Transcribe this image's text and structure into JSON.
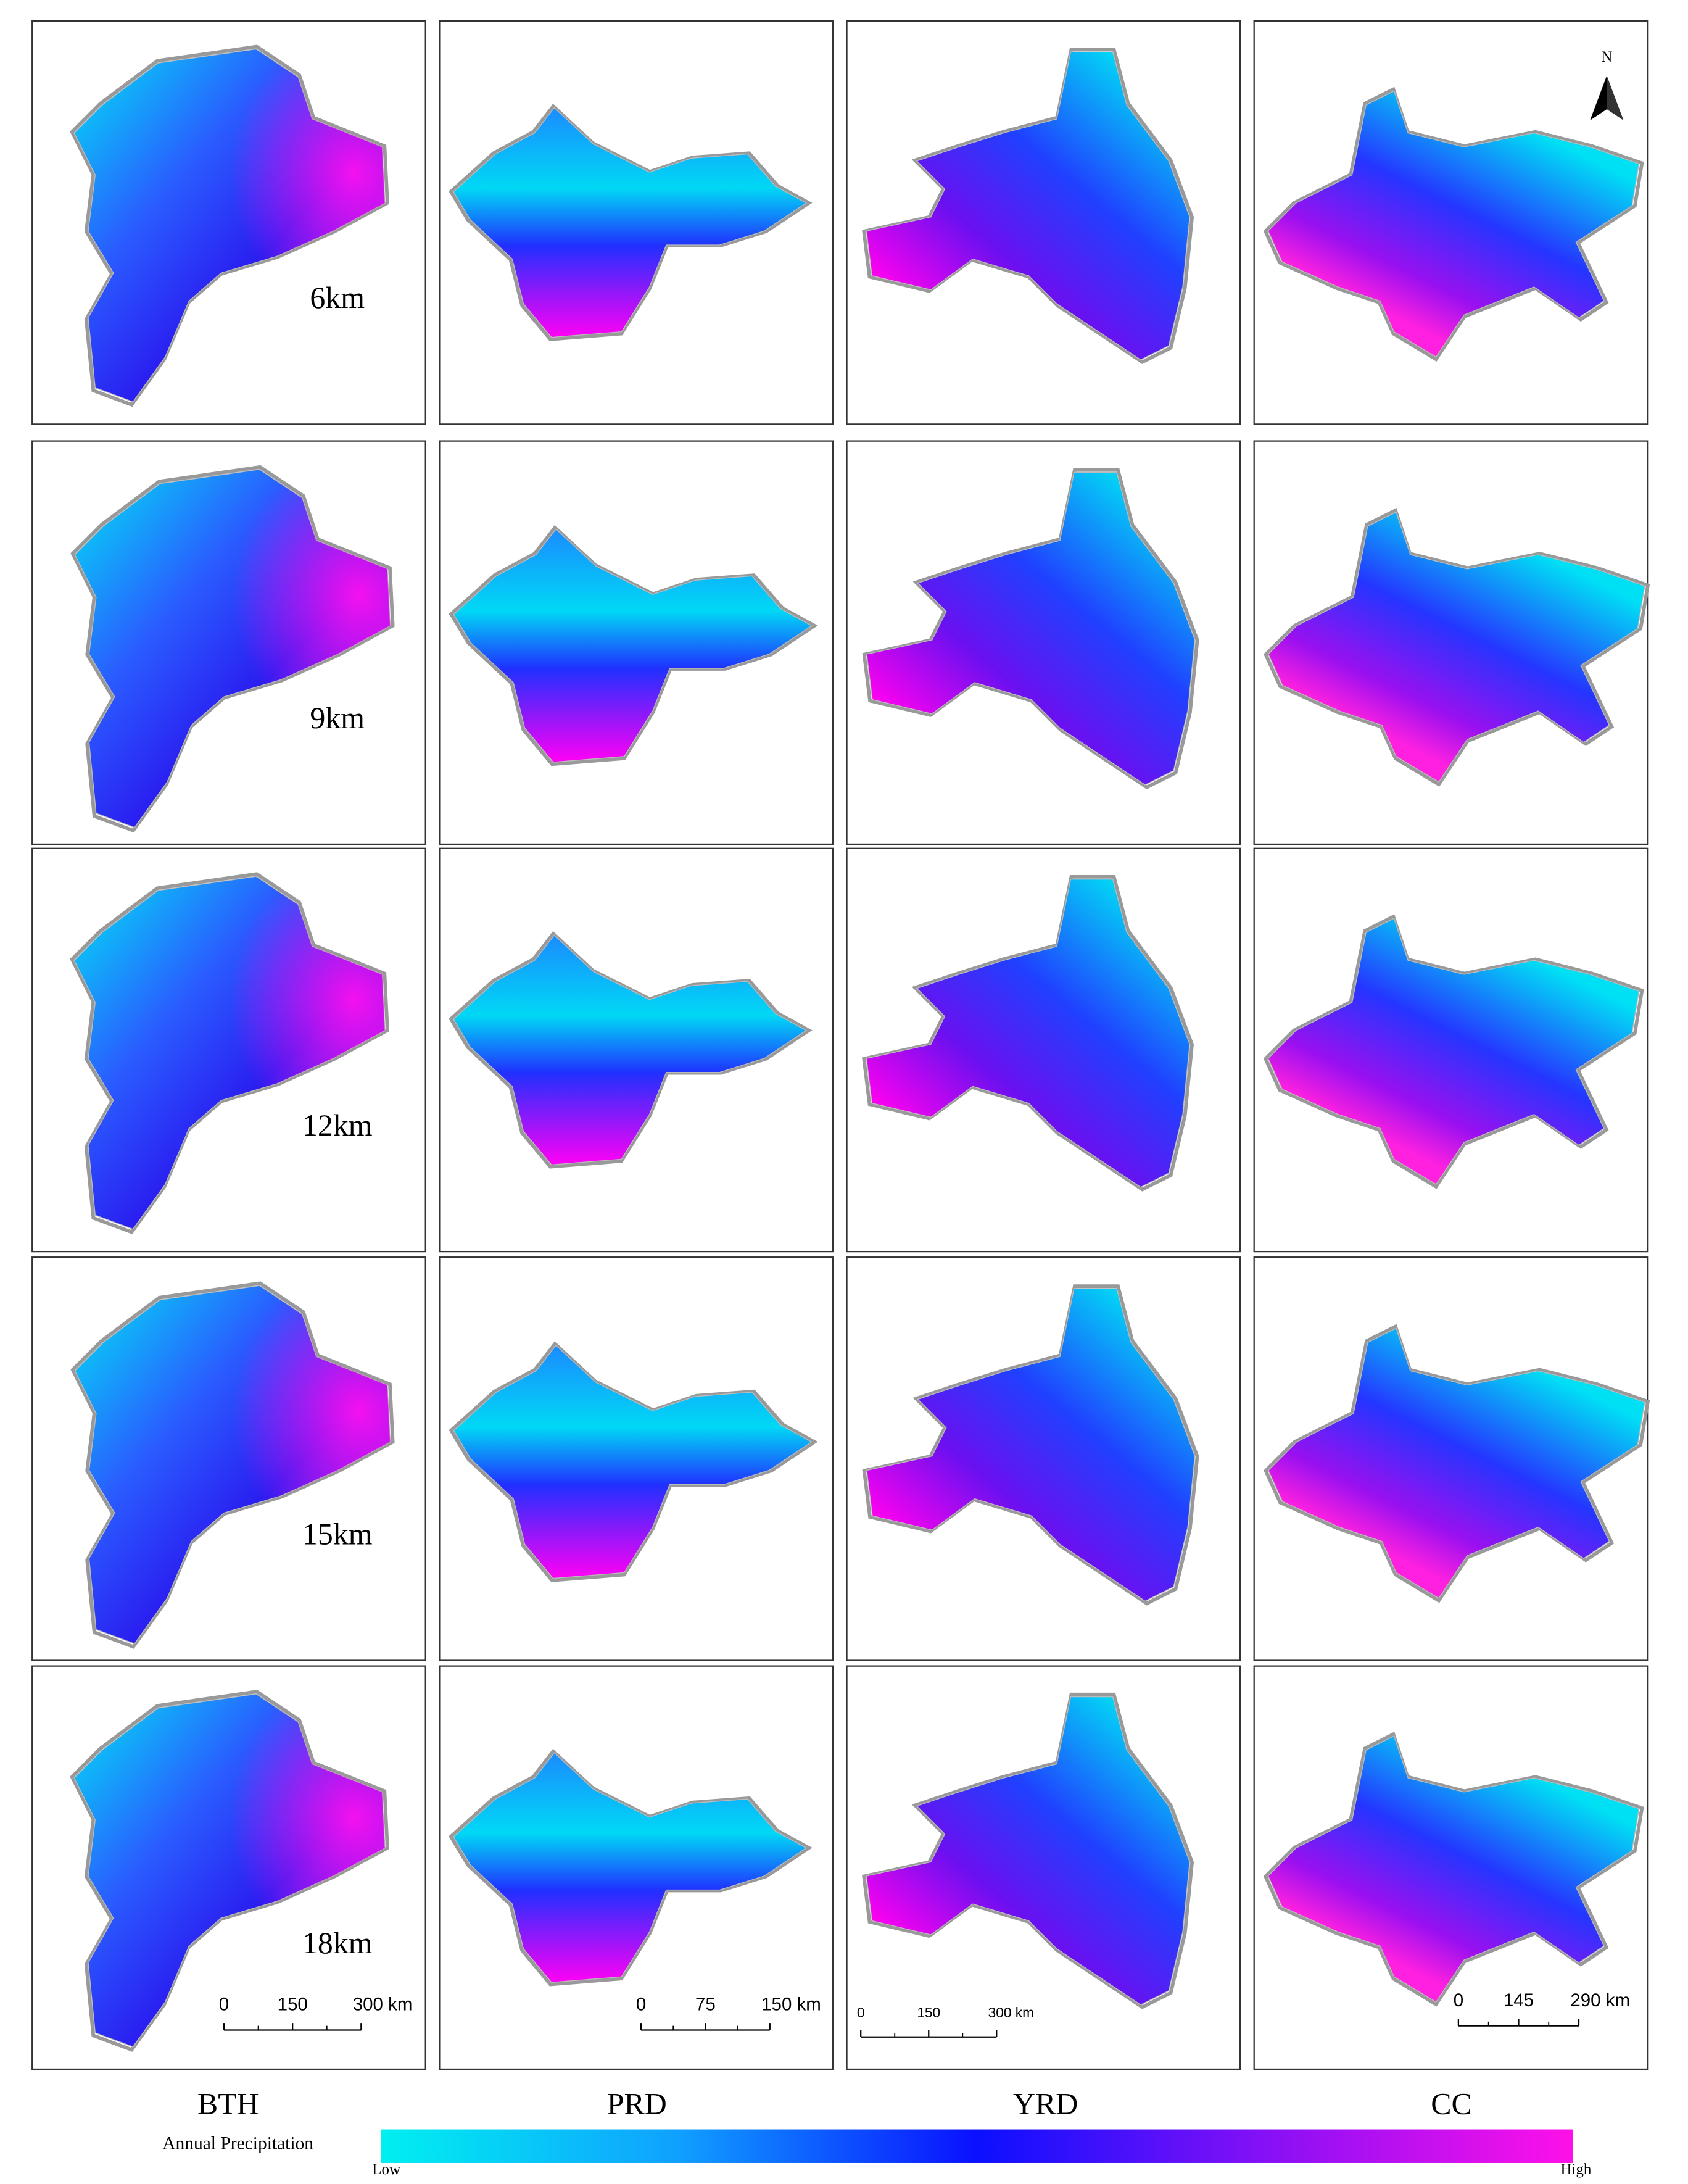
{
  "regions": [
    "BTH",
    "PRD",
    "YRD",
    "CC"
  ],
  "resolutions": [
    "6km",
    "9km",
    "12km",
    "15km",
    "18km"
  ],
  "north_arrow": "N",
  "scale_bars": [
    {
      "ticks": [
        "0",
        "150",
        "300 km"
      ]
    },
    {
      "ticks": [
        "0",
        "75",
        "150 km"
      ]
    },
    {
      "ticks": [
        "0",
        "150",
        "300 km"
      ]
    },
    {
      "ticks": [
        "0",
        "145",
        "290 km"
      ]
    }
  ],
  "legend": {
    "title": "Annual Precipitation",
    "low": "Low",
    "high": "High"
  }
}
